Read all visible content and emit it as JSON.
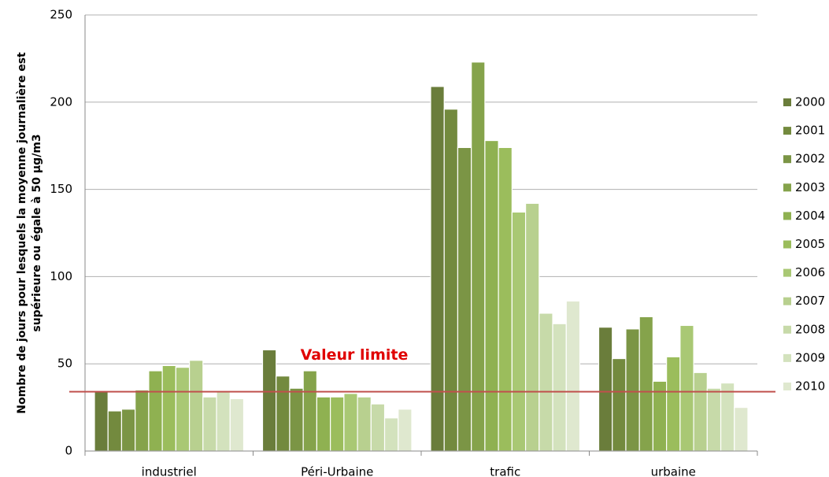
{
  "chart_data": {
    "type": "bar",
    "ylabel": [
      "Nombre de jours pour lesquels la moyenne journalière est",
      "supérieure ou égale à 50 µg/m3"
    ],
    "categories": [
      "industriel",
      "Péri-Urbaine",
      "trafic",
      "urbaine"
    ],
    "series": [
      {
        "name": "2000",
        "color": "#6a7d3b",
        "values": [
          34,
          58,
          209,
          71
        ]
      },
      {
        "name": "2001",
        "color": "#738a3e",
        "values": [
          23,
          43,
          196,
          53
        ]
      },
      {
        "name": "2002",
        "color": "#7b9545",
        "values": [
          24,
          36,
          174,
          70
        ]
      },
      {
        "name": "2003",
        "color": "#85a34b",
        "values": [
          35,
          46,
          223,
          77
        ]
      },
      {
        "name": "2004",
        "color": "#8fb151",
        "values": [
          46,
          31,
          178,
          40
        ]
      },
      {
        "name": "2005",
        "color": "#9bbd5c",
        "values": [
          49,
          31,
          174,
          54
        ]
      },
      {
        "name": "2006",
        "color": "#a9c874",
        "values": [
          48,
          33,
          137,
          72
        ]
      },
      {
        "name": "2007",
        "color": "#b8d08f",
        "values": [
          52,
          31,
          142,
          45
        ]
      },
      {
        "name": "2008",
        "color": "#c7daa9",
        "values": [
          31,
          27,
          79,
          36
        ]
      },
      {
        "name": "2009",
        "color": "#d3e2bd",
        "values": [
          34,
          19,
          73,
          39
        ]
      },
      {
        "name": "2010",
        "color": "#dfe8cf",
        "values": [
          30,
          24,
          86,
          25
        ]
      }
    ],
    "ylim": [
      0,
      250
    ],
    "yticks": [
      0,
      50,
      100,
      150,
      200,
      250
    ],
    "grid": true,
    "reference_line": {
      "value": 34,
      "label": "Valeur limite",
      "color": "#c0504d"
    },
    "legend": "right"
  }
}
